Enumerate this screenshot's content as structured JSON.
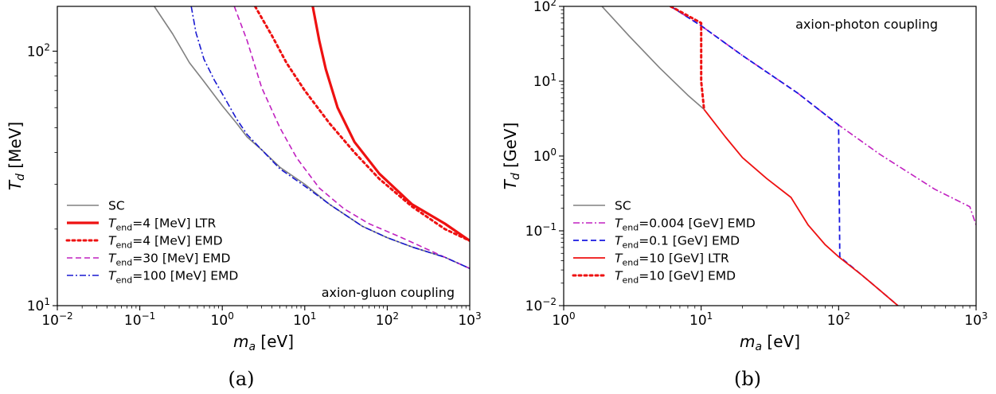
{
  "chart_data": [
    {
      "panel": "(a)",
      "type": "line",
      "xscale": "log",
      "yscale": "log",
      "xlim": [
        0.01,
        1000
      ],
      "ylim": [
        10,
        150
      ],
      "xlabel_base": "m",
      "xlabel_sub": "a",
      "xlabel_unit": " [eV]",
      "ylabel_base": "T",
      "ylabel_sub": "d",
      "ylabel_unit": " [MeV]",
      "x_ticks": [
        {
          "value": 0.01,
          "base": "10",
          "exp": "−2"
        },
        {
          "value": 0.1,
          "base": "10",
          "exp": "−1"
        },
        {
          "value": 1,
          "base": "10",
          "exp": "0"
        },
        {
          "value": 10,
          "base": "10",
          "exp": "1"
        },
        {
          "value": 100,
          "base": "10",
          "exp": "2"
        },
        {
          "value": 1000,
          "base": "10",
          "exp": "3"
        }
      ],
      "y_ticks": [
        {
          "value": 10,
          "base": "10",
          "exp": "1"
        },
        {
          "value": 100,
          "base": "10",
          "exp": "2"
        }
      ],
      "grid": false,
      "legend_position": "bottom-left",
      "annotation": "axion-gluon coupling",
      "series": [
        {
          "name_pre": "SC",
          "name_sub": "",
          "name_post": "",
          "color": "#808080",
          "dash": "solid",
          "width": 1.6,
          "x": [
            0.15,
            0.25,
            0.4,
            0.6,
            1.0,
            1.5,
            2.0,
            3.0,
            5.0,
            10,
            20,
            50,
            100,
            200,
            500,
            1000
          ],
          "y": [
            150,
            117,
            90,
            76,
            61,
            52,
            46,
            41,
            35,
            30,
            25,
            20.5,
            18.5,
            17.0,
            15.5,
            14.0
          ]
        },
        {
          "name_pre": "T",
          "name_sub": "end",
          "name_post": "=4 [MeV] LTR",
          "color": "#ee1111",
          "dash": "solid",
          "width": 3.2,
          "x": [
            12.5,
            15,
            18,
            25,
            40,
            80,
            200,
            500,
            1000
          ],
          "y": [
            150,
            110,
            85,
            60,
            44,
            33,
            25,
            21,
            18
          ]
        },
        {
          "name_pre": "T",
          "name_sub": "end",
          "name_post": "=4 [MeV] EMD",
          "color": "#ee1111",
          "dash": "dot",
          "width": 3.0,
          "x": [
            2.5,
            4,
            6,
            10,
            20,
            40,
            80,
            200,
            500,
            1000
          ],
          "y": [
            150,
            115,
            90,
            70,
            52,
            40,
            31.5,
            24.5,
            20,
            18
          ]
        },
        {
          "name_pre": "T",
          "name_sub": "end",
          "name_post": "=30 [MeV] EMD",
          "color": "#c020c0",
          "dash": "dash",
          "width": 1.6,
          "x": [
            1.4,
            2,
            3,
            5,
            8,
            15,
            30,
            60,
            150,
            400,
            1000
          ],
          "y": [
            150,
            110,
            72,
            50,
            38,
            29,
            24,
            21,
            18.5,
            16,
            14
          ]
        },
        {
          "name_pre": "T",
          "name_sub": "end",
          "name_post": "=100 [MeV] EMD",
          "color": "#1818d0",
          "dash": "dashdot",
          "width": 1.6,
          "x": [
            0.42,
            0.48,
            0.6,
            0.8,
            1.0,
            1.5,
            2,
            3,
            5,
            10,
            20,
            50,
            100,
            200,
            500,
            1000
          ],
          "y": [
            150,
            118,
            93,
            77,
            68,
            54,
            47,
            41,
            34.5,
            29.5,
            25,
            20.5,
            18.5,
            17,
            15.5,
            14
          ]
        }
      ]
    },
    {
      "panel": "(b)",
      "type": "line",
      "xscale": "log",
      "yscale": "log",
      "xlim": [
        1,
        1000
      ],
      "ylim": [
        0.01,
        100
      ],
      "xlabel_base": "m",
      "xlabel_sub": "a",
      "xlabel_unit": " [eV]",
      "ylabel_base": "T",
      "ylabel_sub": "d",
      "ylabel_unit": " [GeV]",
      "x_ticks": [
        {
          "value": 1,
          "base": "10",
          "exp": "0"
        },
        {
          "value": 10,
          "base": "10",
          "exp": "1"
        },
        {
          "value": 100,
          "base": "10",
          "exp": "2"
        },
        {
          "value": 1000,
          "base": "10",
          "exp": "3"
        }
      ],
      "y_ticks": [
        {
          "value": 0.01,
          "base": "10",
          "exp": "−2"
        },
        {
          "value": 0.1,
          "base": "10",
          "exp": "−1"
        },
        {
          "value": 1,
          "base": "10",
          "exp": "0"
        },
        {
          "value": 10,
          "base": "10",
          "exp": "1"
        },
        {
          "value": 100,
          "base": "10",
          "exp": "2"
        }
      ],
      "grid": false,
      "legend_position": "bottom-left",
      "annotation": "axion-photon coupling",
      "series": [
        {
          "name_pre": "SC",
          "name_sub": "",
          "name_post": "",
          "color": "#808080",
          "dash": "solid",
          "width": 1.6,
          "x": [
            1.9,
            3,
            5,
            8,
            10.5
          ],
          "y": [
            100,
            40,
            15,
            6.5,
            4.2
          ]
        },
        {
          "name_pre": "T",
          "name_sub": "end",
          "name_post": "=0.004 [GeV] EMD",
          "color": "#c020c0",
          "dash": "dashdot",
          "width": 1.6,
          "x": [
            6,
            10,
            20,
            50,
            100,
            200,
            500,
            900,
            1000
          ],
          "y": [
            100,
            55,
            22,
            7.0,
            2.6,
            1.05,
            0.36,
            0.21,
            0.12
          ]
        },
        {
          "name_pre": "T",
          "name_sub": "end",
          "name_post": "=0.1 [GeV] EMD",
          "color": "#1818e0",
          "dash": "dash",
          "width": 1.8,
          "x": [
            6,
            10,
            20,
            50,
            100,
            100,
            102,
            150,
            200,
            270
          ],
          "y": [
            100,
            55,
            22,
            7.0,
            2.6,
            2.6,
            0.045,
            0.025,
            0.016,
            0.01
          ]
        },
        {
          "name_pre": "T",
          "name_sub": "end",
          "name_post": "=10 [GeV] LTR",
          "color": "#ee1111",
          "dash": "solid",
          "width": 1.8,
          "x": [
            10.5,
            15,
            20,
            30,
            45,
            60,
            80,
            100,
            150,
            200,
            270
          ],
          "y": [
            4.2,
            1.8,
            0.95,
            0.5,
            0.28,
            0.12,
            0.065,
            0.045,
            0.025,
            0.016,
            0.01
          ]
        },
        {
          "name_pre": "T",
          "name_sub": "end",
          "name_post": "=10 [GeV] EMD",
          "color": "#ee1111",
          "dash": "dot",
          "width": 3.0,
          "x": [
            6,
            8,
            10,
            10,
            10.5
          ],
          "y": [
            100,
            75,
            60,
            10,
            4.2
          ]
        }
      ]
    }
  ],
  "captions": [
    "(a)",
    "(b)"
  ]
}
